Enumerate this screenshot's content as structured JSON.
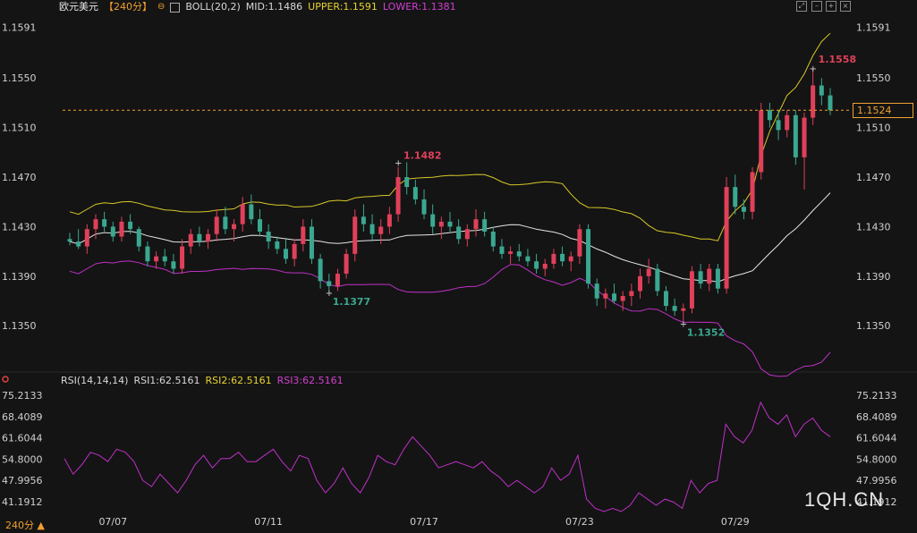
{
  "header": {
    "symbol": "欧元美元",
    "period": "【240分】",
    "indicator": "BOLL(20,2)",
    "mid": "MID:1.1486",
    "upper": "UPPER:1.1591",
    "lower": "LOWER:1.1381"
  },
  "rsi_header": {
    "label": "RSI(14,14,14)",
    "rsi1": "RSI1:62.5161",
    "rsi2": "RSI2:62.5161",
    "rsi3": "RSI3:62.5161"
  },
  "current_price": "1.1524",
  "period_selector": "240分 ▲",
  "watermark": "1QH.CN",
  "colors": {
    "background": "#141414",
    "up": "#e0405a",
    "down": "#3aa890",
    "mid": "#e6e6e6",
    "upper": "#d8c828",
    "lower": "#c030c8",
    "rsi": "#c030c8",
    "current": "#f0a030"
  },
  "chart_data": [
    {
      "type": "candlestick",
      "title": "欧元美元",
      "y_ticks": [
        "1.1591",
        "1.1550",
        "1.1510",
        "1.1470",
        "1.1430",
        "1.1390",
        "1.1350"
      ],
      "ylim": [
        1.1335,
        1.16
      ],
      "x_tick_labels": [
        "07/07",
        "07/11",
        "07/17",
        "07/23",
        "07/29"
      ],
      "current_price": 1.1524,
      "annotations": [
        {
          "label": "1.1482",
          "value": 1.1482
        },
        {
          "label": "1.1377",
          "value": 1.1377
        },
        {
          "label": "1.1352",
          "value": 1.1352
        },
        {
          "label": "1.1558",
          "value": 1.1558
        }
      ],
      "ohlc": [
        [
          1.142,
          1.1425,
          1.1415,
          1.1418
        ],
        [
          1.1418,
          1.1428,
          1.1412,
          1.1414
        ],
        [
          1.1414,
          1.1432,
          1.1408,
          1.1428
        ],
        [
          1.1428,
          1.144,
          1.142,
          1.1436
        ],
        [
          1.1436,
          1.1442,
          1.1426,
          1.143
        ],
        [
          1.143,
          1.1434,
          1.1418,
          1.1422
        ],
        [
          1.1422,
          1.1438,
          1.1418,
          1.1434
        ],
        [
          1.1434,
          1.144,
          1.1424,
          1.1428
        ],
        [
          1.1428,
          1.143,
          1.141,
          1.1414
        ],
        [
          1.1414,
          1.1418,
          1.1398,
          1.1402
        ],
        [
          1.1402,
          1.141,
          1.1396,
          1.1406
        ],
        [
          1.1406,
          1.1412,
          1.1398,
          1.1402
        ],
        [
          1.1402,
          1.1408,
          1.1392,
          1.1396
        ],
        [
          1.1396,
          1.142,
          1.1392,
          1.1414
        ],
        [
          1.1414,
          1.1428,
          1.1408,
          1.1424
        ],
        [
          1.1424,
          1.143,
          1.1414,
          1.1418
        ],
        [
          1.1418,
          1.1428,
          1.1412,
          1.1424
        ],
        [
          1.1424,
          1.1444,
          1.1418,
          1.1438
        ],
        [
          1.1438,
          1.1446,
          1.1424,
          1.1428
        ],
        [
          1.1428,
          1.1436,
          1.1418,
          1.1432
        ],
        [
          1.1432,
          1.1454,
          1.1426,
          1.1448
        ],
        [
          1.1448,
          1.1456,
          1.1432,
          1.1436
        ],
        [
          1.1436,
          1.1444,
          1.1422,
          1.1426
        ],
        [
          1.1426,
          1.1432,
          1.1412,
          1.1418
        ],
        [
          1.1418,
          1.1422,
          1.1408,
          1.1412
        ],
        [
          1.1412,
          1.142,
          1.14,
          1.1404
        ],
        [
          1.1404,
          1.142,
          1.1398,
          1.1416
        ],
        [
          1.1416,
          1.1436,
          1.141,
          1.143
        ],
        [
          1.143,
          1.1436,
          1.14,
          1.1404
        ],
        [
          1.1404,
          1.1408,
          1.138,
          1.1386
        ],
        [
          1.1386,
          1.1392,
          1.1377,
          1.1382
        ],
        [
          1.1382,
          1.1396,
          1.1378,
          1.1392
        ],
        [
          1.1392,
          1.1412,
          1.1388,
          1.1408
        ],
        [
          1.1408,
          1.1444,
          1.1402,
          1.1438
        ],
        [
          1.1438,
          1.1448,
          1.1426,
          1.1432
        ],
        [
          1.1432,
          1.144,
          1.1418,
          1.1424
        ],
        [
          1.1424,
          1.1436,
          1.1416,
          1.143
        ],
        [
          1.143,
          1.1446,
          1.1424,
          1.144
        ],
        [
          1.144,
          1.1478,
          1.1434,
          1.147
        ],
        [
          1.147,
          1.1482,
          1.1456,
          1.1462
        ],
        [
          1.1462,
          1.1468,
          1.1448,
          1.1452
        ],
        [
          1.1452,
          1.146,
          1.1436,
          1.144
        ],
        [
          1.144,
          1.1448,
          1.1424,
          1.143
        ],
        [
          1.143,
          1.1438,
          1.142,
          1.1434
        ],
        [
          1.1434,
          1.1442,
          1.1426,
          1.143
        ],
        [
          1.143,
          1.1436,
          1.1416,
          1.142
        ],
        [
          1.142,
          1.1432,
          1.1414,
          1.1428
        ],
        [
          1.1428,
          1.1444,
          1.1422,
          1.1436
        ],
        [
          1.1436,
          1.1442,
          1.1422,
          1.1426
        ],
        [
          1.1426,
          1.143,
          1.141,
          1.1414
        ],
        [
          1.1414,
          1.142,
          1.1404,
          1.1408
        ],
        [
          1.1408,
          1.1414,
          1.14,
          1.141
        ],
        [
          1.141,
          1.1416,
          1.1402,
          1.1406
        ],
        [
          1.1406,
          1.1412,
          1.1398,
          1.1402
        ],
        [
          1.1402,
          1.1408,
          1.1392,
          1.1396
        ],
        [
          1.1396,
          1.1404,
          1.139,
          1.14
        ],
        [
          1.14,
          1.1412,
          1.1396,
          1.1408
        ],
        [
          1.1408,
          1.1414,
          1.1398,
          1.1402
        ],
        [
          1.1402,
          1.141,
          1.1394,
          1.1406
        ],
        [
          1.1406,
          1.1432,
          1.14,
          1.1428
        ],
        [
          1.1428,
          1.1432,
          1.138,
          1.1384
        ],
        [
          1.1384,
          1.1388,
          1.1366,
          1.1372
        ],
        [
          1.1372,
          1.138,
          1.1364,
          1.1376
        ],
        [
          1.1376,
          1.1384,
          1.1368,
          1.137
        ],
        [
          1.137,
          1.1378,
          1.1362,
          1.1374
        ],
        [
          1.1374,
          1.1384,
          1.1366,
          1.1378
        ],
        [
          1.1378,
          1.1396,
          1.1372,
          1.139
        ],
        [
          1.139,
          1.1404,
          1.1384,
          1.1396
        ],
        [
          1.1396,
          1.14,
          1.1374,
          1.1378
        ],
        [
          1.1378,
          1.1382,
          1.1362,
          1.1366
        ],
        [
          1.1366,
          1.1372,
          1.1358,
          1.1362
        ],
        [
          1.1362,
          1.1368,
          1.1352,
          1.1364
        ],
        [
          1.1364,
          1.1398,
          1.136,
          1.1394
        ],
        [
          1.1394,
          1.14,
          1.138,
          1.1384
        ],
        [
          1.1384,
          1.14,
          1.1378,
          1.1396
        ],
        [
          1.1396,
          1.14,
          1.1376,
          1.138
        ],
        [
          1.138,
          1.147,
          1.1376,
          1.1462
        ],
        [
          1.1462,
          1.1472,
          1.144,
          1.1446
        ],
        [
          1.1446,
          1.1452,
          1.1436,
          1.1442
        ],
        [
          1.1442,
          1.1478,
          1.1436,
          1.1474
        ],
        [
          1.1474,
          1.153,
          1.1468,
          1.1524
        ],
        [
          1.1524,
          1.153,
          1.151,
          1.1516
        ],
        [
          1.1516,
          1.1524,
          1.15,
          1.1508
        ],
        [
          1.1508,
          1.1524,
          1.1502,
          1.152
        ],
        [
          1.152,
          1.1524,
          1.148,
          1.1486
        ],
        [
          1.1486,
          1.1522,
          1.146,
          1.1518
        ],
        [
          1.1518,
          1.1558,
          1.1512,
          1.1544
        ],
        [
          1.1544,
          1.155,
          1.1528,
          1.1536
        ],
        [
          1.1536,
          1.1542,
          1.152,
          1.1524
        ]
      ],
      "bollinger": {
        "upper_endpoints": [
          1.1475,
          1.1591
        ],
        "mid_endpoints": [
          1.1425,
          1.1486
        ],
        "lower_endpoints": [
          1.1362,
          1.1381
        ]
      }
    },
    {
      "type": "line",
      "title": "RSI(14,14,14)",
      "y_ticks": [
        "75.2133",
        "68.4089",
        "61.6044",
        "54.8000",
        "47.9956",
        "41.1912"
      ],
      "ylim": [
        38.0,
        77.0
      ],
      "series": [
        {
          "name": "RSI1",
          "values": [
            55,
            50,
            53,
            57,
            56,
            54,
            58,
            57,
            54,
            48,
            46,
            50,
            47,
            44,
            48,
            53,
            56,
            52,
            55,
            55,
            57,
            54,
            54,
            56,
            58,
            54,
            51,
            56,
            55,
            48,
            44,
            47,
            52,
            47,
            44,
            49,
            56,
            54,
            53,
            58,
            62,
            59,
            56,
            52,
            53,
            54,
            53,
            52,
            54,
            51,
            49,
            46,
            48,
            46,
            44,
            46,
            52,
            48,
            50,
            56,
            42,
            39,
            38,
            39,
            38,
            40,
            44,
            42,
            40,
            42,
            41,
            39,
            48,
            44,
            47,
            48,
            66,
            62,
            60,
            64,
            73,
            68,
            66,
            69,
            62,
            66,
            68,
            64,
            62
          ]
        }
      ]
    }
  ]
}
